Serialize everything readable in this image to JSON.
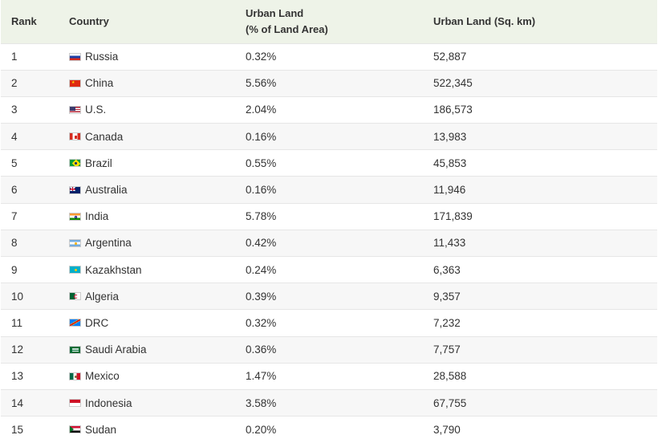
{
  "table": {
    "headers": {
      "rank": "Rank",
      "country": "Country",
      "pct_line1": "Urban Land",
      "pct_line2": "(% of Land Area)",
      "area": "Urban Land (Sq. km)"
    },
    "rows": [
      {
        "rank": "1",
        "country": "Russia",
        "flag_icon": "russia-flag-icon",
        "pct": "0.32%",
        "area": "52,887"
      },
      {
        "rank": "2",
        "country": "China",
        "flag_icon": "china-flag-icon",
        "pct": "5.56%",
        "area": "522,345"
      },
      {
        "rank": "3",
        "country": "U.S.",
        "flag_icon": "us-flag-icon",
        "pct": "2.04%",
        "area": "186,573"
      },
      {
        "rank": "4",
        "country": "Canada",
        "flag_icon": "canada-flag-icon",
        "pct": "0.16%",
        "area": "13,983"
      },
      {
        "rank": "5",
        "country": "Brazil",
        "flag_icon": "brazil-flag-icon",
        "pct": "0.55%",
        "area": "45,853"
      },
      {
        "rank": "6",
        "country": "Australia",
        "flag_icon": "australia-flag-icon",
        "pct": "0.16%",
        "area": "11,946"
      },
      {
        "rank": "7",
        "country": "India",
        "flag_icon": "india-flag-icon",
        "pct": "5.78%",
        "area": "171,839"
      },
      {
        "rank": "8",
        "country": "Argentina",
        "flag_icon": "argentina-flag-icon",
        "pct": "0.42%",
        "area": "11,433"
      },
      {
        "rank": "9",
        "country": "Kazakhstan",
        "flag_icon": "kazakhstan-flag-icon",
        "pct": "0.24%",
        "area": "6,363"
      },
      {
        "rank": "10",
        "country": "Algeria",
        "flag_icon": "algeria-flag-icon",
        "pct": "0.39%",
        "area": "9,357"
      },
      {
        "rank": "11",
        "country": "DRC",
        "flag_icon": "drc-flag-icon",
        "pct": "0.32%",
        "area": "7,232"
      },
      {
        "rank": "12",
        "country": "Saudi Arabia",
        "flag_icon": "saudi-arabia-flag-icon",
        "pct": "0.36%",
        "area": "7,757"
      },
      {
        "rank": "13",
        "country": "Mexico",
        "flag_icon": "mexico-flag-icon",
        "pct": "1.47%",
        "area": "28,588"
      },
      {
        "rank": "14",
        "country": "Indonesia",
        "flag_icon": "indonesia-flag-icon",
        "pct": "3.58%",
        "area": "67,755"
      },
      {
        "rank": "15",
        "country": "Sudan",
        "flag_icon": "sudan-flag-icon",
        "pct": "0.20%",
        "area": "3,790"
      }
    ]
  },
  "colors": {
    "header_bg": "#eef3e8",
    "stripe_bg": "#f7f7f7"
  },
  "chart_data": {
    "type": "table",
    "columns": [
      "Rank",
      "Country",
      "Urban Land (% of Land Area)",
      "Urban Land (Sq. km)"
    ],
    "rows": [
      [
        1,
        "Russia",
        "0.32%",
        52887
      ],
      [
        2,
        "China",
        "5.56%",
        522345
      ],
      [
        3,
        "U.S.",
        "2.04%",
        186573
      ],
      [
        4,
        "Canada",
        "0.16%",
        13983
      ],
      [
        5,
        "Brazil",
        "0.55%",
        45853
      ],
      [
        6,
        "Australia",
        "0.16%",
        11946
      ],
      [
        7,
        "India",
        "5.78%",
        171839
      ],
      [
        8,
        "Argentina",
        "0.42%",
        11433
      ],
      [
        9,
        "Kazakhstan",
        "0.24%",
        6363
      ],
      [
        10,
        "Algeria",
        "0.39%",
        9357
      ],
      [
        11,
        "DRC",
        "0.32%",
        7232
      ],
      [
        12,
        "Saudi Arabia",
        "0.36%",
        7757
      ],
      [
        13,
        "Mexico",
        "1.47%",
        28588
      ],
      [
        14,
        "Indonesia",
        "3.58%",
        67755
      ],
      [
        15,
        "Sudan",
        "0.20%",
        3790
      ]
    ]
  }
}
